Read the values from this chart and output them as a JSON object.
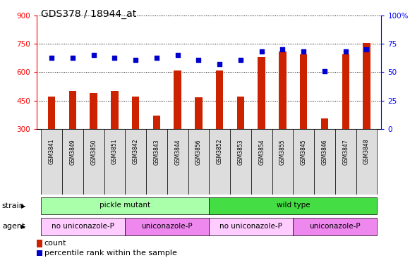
{
  "title": "GDS378 / 18944_at",
  "samples": [
    "GSM3841",
    "GSM3849",
    "GSM3850",
    "GSM3851",
    "GSM3842",
    "GSM3843",
    "GSM3844",
    "GSM3856",
    "GSM3852",
    "GSM3853",
    "GSM3854",
    "GSM3855",
    "GSM3845",
    "GSM3846",
    "GSM3847",
    "GSM3848"
  ],
  "counts": [
    470,
    500,
    490,
    500,
    470,
    370,
    610,
    468,
    610,
    470,
    680,
    710,
    695,
    355,
    695,
    755
  ],
  "percentiles": [
    63,
    63,
    65,
    63,
    61,
    63,
    65,
    61,
    57,
    61,
    68,
    70,
    68,
    51,
    68,
    70
  ],
  "strain_groups": [
    {
      "label": "pickle mutant",
      "start": 0,
      "end": 8,
      "color": "#aaffaa"
    },
    {
      "label": "wild type",
      "start": 8,
      "end": 16,
      "color": "#44dd44"
    }
  ],
  "agent_groups": [
    {
      "label": "no uniconazole-P",
      "start": 0,
      "end": 4,
      "color": "#ffccff"
    },
    {
      "label": "uniconazole-P",
      "start": 4,
      "end": 8,
      "color": "#ee88ee"
    },
    {
      "label": "no uniconazole-P",
      "start": 8,
      "end": 12,
      "color": "#ffccff"
    },
    {
      "label": "uniconazole-P",
      "start": 12,
      "end": 16,
      "color": "#ee88ee"
    }
  ],
  "ylim_left": [
    300,
    900
  ],
  "ylim_right": [
    0,
    100
  ],
  "yticks_left": [
    300,
    450,
    600,
    750,
    900
  ],
  "yticks_right": [
    0,
    25,
    50,
    75,
    100
  ],
  "bar_color": "#cc2200",
  "dot_color": "#0000cc",
  "background_color": "#ffffff",
  "title_color": "#000000",
  "title_fontsize": 10,
  "strain_label": "strain",
  "agent_label": "agent",
  "legend_count_label": "count",
  "legend_percentile_label": "percentile rank within the sample"
}
